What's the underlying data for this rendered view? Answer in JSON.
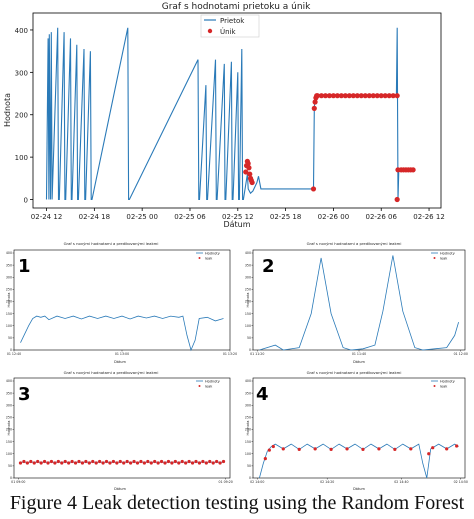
{
  "caption": "Figure 4 Leak detection testing using the Random Forest",
  "colors": {
    "line": "#2a7ab8",
    "leak": "#d62728",
    "axis": "#000000",
    "text": "#222222"
  },
  "chart_data": [
    {
      "id": "main",
      "type": "line",
      "title": "Graf s hodnotami prietoku a únik",
      "xlabel": "Dátum",
      "ylabel": "Hodnota",
      "x_ticks": [
        "02-24 12",
        "02-24 18",
        "02-25 00",
        "02-25 06",
        "02-25 12",
        "02-25 18",
        "02-26 00",
        "02-26 06",
        "02-26 12"
      ],
      "x_tick_hours": [
        0,
        6,
        12,
        18,
        24,
        30,
        36,
        42,
        48
      ],
      "xlim": [
        -1.7,
        49.5
      ],
      "ylim": [
        -20,
        440
      ],
      "y_ticks": [
        0,
        100,
        200,
        300,
        400
      ],
      "legend": {
        "position": "top-right",
        "entries": [
          "Prietok",
          "Únik"
        ]
      },
      "series": [
        {
          "name": "Prietok",
          "kind": "line",
          "x": [
            0,
            0.2,
            0.3,
            0.35,
            0.5,
            0.6,
            0.7,
            1.4,
            1.5,
            1.6,
            2.2,
            2.3,
            2.4,
            3.0,
            3.1,
            3.2,
            3.8,
            3.9,
            4.0,
            4.7,
            4.8,
            4.9,
            5.5,
            5.6,
            5.7,
            10.2,
            10.3,
            10.4,
            19.0,
            19.1,
            19.2,
            20.0,
            20.1,
            20.2,
            21.2,
            21.3,
            21.4,
            22.3,
            22.4,
            22.5,
            23.2,
            23.3,
            23.4,
            24.0,
            24.1,
            24.2,
            24.5,
            24.6,
            24.7,
            25.2,
            25.3,
            25.6,
            25.9,
            26.4,
            26.6,
            26.9,
            27.3,
            27.8,
            28.0,
            33.5,
            33.6,
            33.7,
            34.0,
            43.9,
            44.0,
            44.1,
            44.2,
            44.3,
            44.5,
            46.0
          ],
          "y": [
            0,
            380,
            0,
            390,
            0,
            395,
            0,
            405,
            0,
            0,
            395,
            0,
            0,
            380,
            0,
            0,
            365,
            0,
            0,
            355,
            0,
            0,
            350,
            0,
            0,
            405,
            0,
            0,
            330,
            0,
            0,
            270,
            0,
            0,
            330,
            0,
            0,
            320,
            0,
            0,
            325,
            0,
            0,
            300,
            0,
            0,
            355,
            0,
            0,
            60,
            25,
            15,
            20,
            40,
            55,
            25,
            25,
            25,
            25,
            25,
            215,
            245,
            245,
            245,
            405,
            0,
            70,
            70,
            70,
            70
          ]
        },
        {
          "name": "Únik",
          "kind": "scatter",
          "x": [
            25.0,
            25.1,
            25.2,
            25.3,
            25.4,
            25.5,
            25.6,
            25.7,
            25.8,
            33.5,
            33.6,
            33.7,
            33.8,
            33.9,
            34.0,
            34.5,
            35.0,
            35.5,
            36.0,
            36.5,
            37.0,
            37.5,
            38.0,
            38.5,
            39.0,
            39.5,
            40.0,
            40.5,
            41.0,
            41.5,
            42.0,
            42.5,
            43.0,
            43.5,
            44.0,
            44.0,
            44.1,
            44.5,
            44.8,
            45.1,
            45.4,
            45.7,
            46.0
          ],
          "y": [
            65,
            80,
            90,
            85,
            75,
            60,
            50,
            45,
            40,
            25,
            215,
            230,
            240,
            245,
            245,
            245,
            245,
            245,
            245,
            245,
            245,
            245,
            245,
            245,
            245,
            245,
            245,
            245,
            245,
            245,
            245,
            245,
            245,
            245,
            245,
            0,
            70,
            70,
            70,
            70,
            70,
            70,
            70
          ]
        }
      ]
    },
    {
      "id": "p1",
      "label": "1",
      "type": "line",
      "title": "Graf s novými hodnotami a predikovanými leakmi",
      "xlabel": "Dátum",
      "ylabel": "Hodnota",
      "ylim": [
        0,
        400
      ],
      "y_ticks": [
        0,
        50,
        100,
        150,
        200,
        250,
        300,
        350,
        400
      ],
      "x_ticks": [
        "01 12:40",
        "01 13:00",
        "01 13:20"
      ],
      "legend": {
        "position": "top-right",
        "entries": [
          "Hodnoty",
          "leak"
        ]
      },
      "series": [
        {
          "name": "Hodnoty",
          "kind": "line",
          "x": [
            0,
            0.04,
            0.06,
            0.08,
            0.1,
            0.12,
            0.14,
            0.18,
            0.22,
            0.26,
            0.3,
            0.34,
            0.38,
            0.42,
            0.46,
            0.5,
            0.54,
            0.58,
            0.62,
            0.66,
            0.7,
            0.74,
            0.78,
            0.8,
            0.82,
            0.84,
            0.86,
            0.88,
            0.92,
            0.96,
            1.0
          ],
          "y": [
            30,
            100,
            130,
            140,
            135,
            140,
            125,
            140,
            130,
            140,
            128,
            140,
            130,
            140,
            130,
            140,
            128,
            140,
            132,
            140,
            130,
            140,
            135,
            140,
            60,
            0,
            40,
            130,
            135,
            120,
            130
          ]
        },
        {
          "name": "leak",
          "kind": "scatter",
          "x": [],
          "y": []
        }
      ]
    },
    {
      "id": "p2",
      "label": "2",
      "type": "line",
      "title": "Graf s novými hodnotami a predikovanými leakmi",
      "xlabel": "Dátum",
      "ylabel": "Hodnota",
      "ylim": [
        0,
        400
      ],
      "y_ticks": [
        0,
        50,
        100,
        150,
        200,
        250,
        300,
        350,
        400
      ],
      "x_ticks": [
        "01 11:20",
        "01 11:40",
        "01 12:00"
      ],
      "legend": {
        "position": "top-right",
        "entries": [
          "Hodnoty",
          "leak"
        ]
      },
      "series": [
        {
          "name": "Hodnoty",
          "kind": "line",
          "x": [
            0,
            0.08,
            0.12,
            0.2,
            0.26,
            0.31,
            0.36,
            0.42,
            0.46,
            0.52,
            0.58,
            0.62,
            0.67,
            0.72,
            0.78,
            0.82,
            0.88,
            0.94,
            0.98,
            1.0
          ],
          "y": [
            0,
            20,
            0,
            10,
            150,
            380,
            150,
            10,
            0,
            5,
            20,
            160,
            390,
            160,
            10,
            0,
            5,
            10,
            60,
            115
          ]
        },
        {
          "name": "leak",
          "kind": "scatter",
          "x": [],
          "y": []
        }
      ]
    },
    {
      "id": "p3",
      "label": "3",
      "type": "line",
      "title": "Graf s novými hodnotami a predikovanými leakmi",
      "xlabel": "Dátum",
      "ylabel": "Hodnota",
      "ylim": [
        0,
        400
      ],
      "y_ticks": [
        0,
        50,
        100,
        150,
        200,
        250,
        300,
        350,
        400
      ],
      "x_ticks": [
        "01 09:00",
        "01 09:20"
      ],
      "legend": {
        "position": "top-right",
        "entries": [
          "Hodnoty",
          "leak"
        ]
      },
      "series": [
        {
          "name": "Hodnoty",
          "kind": "line",
          "x": [
            0,
            1
          ],
          "y": [
            65,
            65
          ]
        },
        {
          "name": "leak",
          "kind": "scatter",
          "note": "dense",
          "value": 65,
          "count": 60
        }
      ]
    },
    {
      "id": "p4",
      "label": "4",
      "type": "line",
      "title": "Graf s novými hodnotami a predikovanými leakmi",
      "xlabel": "Dátum",
      "ylabel": "Hodnota",
      "ylim": [
        0,
        400
      ],
      "y_ticks": [
        0,
        50,
        100,
        150,
        200,
        250,
        300,
        350,
        400
      ],
      "x_ticks": [
        "02 14:00",
        "02 14:20",
        "02 14:40",
        "02 14:50"
      ],
      "legend": {
        "position": "top-right",
        "entries": [
          "Hodnoty",
          "leak"
        ]
      },
      "series": [
        {
          "name": "Hodnoty",
          "kind": "line",
          "x": [
            0,
            0.02,
            0.04,
            0.06,
            0.08,
            0.12,
            0.16,
            0.2,
            0.24,
            0.28,
            0.32,
            0.36,
            0.4,
            0.44,
            0.48,
            0.52,
            0.56,
            0.6,
            0.64,
            0.68,
            0.72,
            0.76,
            0.8,
            0.82,
            0.84,
            0.86,
            0.9,
            0.94,
            0.98,
            1.0
          ],
          "y": [
            0,
            60,
            110,
            130,
            140,
            120,
            140,
            118,
            140,
            120,
            140,
            118,
            140,
            120,
            140,
            118,
            140,
            120,
            140,
            118,
            140,
            120,
            140,
            60,
            0,
            120,
            140,
            120,
            140,
            130
          ]
        },
        {
          "name": "leak",
          "kind": "scatter",
          "x": [
            0.03,
            0.05,
            0.07,
            0.12,
            0.2,
            0.28,
            0.36,
            0.44,
            0.52,
            0.6,
            0.68,
            0.76,
            0.85,
            0.87,
            0.94,
            0.99
          ],
          "y": [
            80,
            115,
            130,
            120,
            118,
            120,
            118,
            120,
            118,
            120,
            118,
            120,
            100,
            125,
            120,
            132
          ]
        }
      ]
    }
  ]
}
